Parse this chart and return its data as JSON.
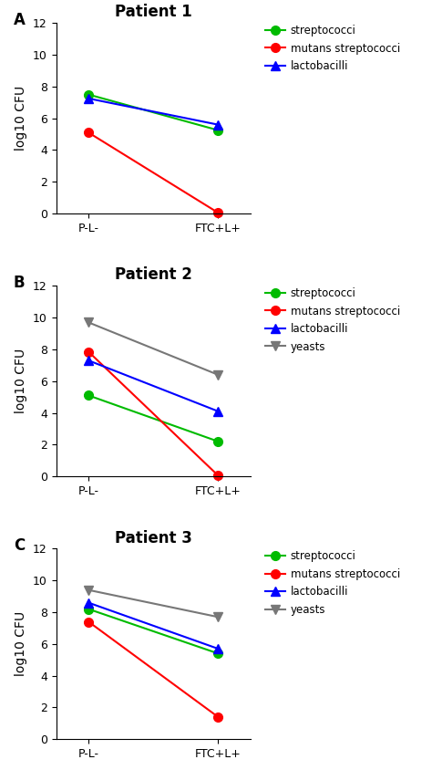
{
  "panels": [
    {
      "label": "A",
      "title": "Patient 1",
      "series": [
        {
          "name": "streptococci",
          "color": "#00bb00",
          "marker": "o",
          "x": [
            0,
            1
          ],
          "y": [
            7.5,
            5.25
          ]
        },
        {
          "name": "mutans streptococci",
          "color": "#ff0000",
          "marker": "o",
          "x": [
            0,
            1
          ],
          "y": [
            5.1,
            0.05
          ]
        },
        {
          "name": "lactobacilli",
          "color": "#0000ff",
          "marker": "^",
          "x": [
            0,
            1
          ],
          "y": [
            7.25,
            5.6
          ]
        }
      ],
      "legend_entries": [
        "streptococci",
        "mutans streptococci",
        "lactobacilli"
      ],
      "legend_colors": [
        "#00bb00",
        "#ff0000",
        "#0000ff"
      ],
      "legend_markers": [
        "o",
        "o",
        "^"
      ]
    },
    {
      "label": "B",
      "title": "Patient 2",
      "series": [
        {
          "name": "streptococci",
          "color": "#00bb00",
          "marker": "o",
          "x": [
            0,
            1
          ],
          "y": [
            5.1,
            2.2
          ]
        },
        {
          "name": "mutans streptococci",
          "color": "#ff0000",
          "marker": "o",
          "x": [
            0,
            1
          ],
          "y": [
            7.85,
            0.05
          ]
        },
        {
          "name": "lactobacilli",
          "color": "#0000ff",
          "marker": "^",
          "x": [
            0,
            1
          ],
          "y": [
            7.3,
            4.1
          ]
        },
        {
          "name": "yeasts",
          "color": "#777777",
          "marker": "v",
          "x": [
            0,
            1
          ],
          "y": [
            9.7,
            6.4
          ]
        }
      ],
      "legend_entries": [
        "streptococci",
        "mutans streptococci",
        "lactobacilli",
        "yeasts"
      ],
      "legend_colors": [
        "#00bb00",
        "#ff0000",
        "#0000ff",
        "#777777"
      ],
      "legend_markers": [
        "o",
        "o",
        "^",
        "v"
      ]
    },
    {
      "label": "C",
      "title": "Patient 3",
      "series": [
        {
          "name": "streptococci",
          "color": "#00bb00",
          "marker": "o",
          "x": [
            0,
            1
          ],
          "y": [
            8.2,
            5.4
          ]
        },
        {
          "name": "mutans streptococci",
          "color": "#ff0000",
          "marker": "o",
          "x": [
            0,
            1
          ],
          "y": [
            7.4,
            1.4
          ]
        },
        {
          "name": "lactobacilli",
          "color": "#0000ff",
          "marker": "^",
          "x": [
            0,
            1
          ],
          "y": [
            8.6,
            5.7
          ]
        },
        {
          "name": "yeasts",
          "color": "#777777",
          "marker": "v",
          "x": [
            0,
            1
          ],
          "y": [
            9.4,
            7.7
          ]
        }
      ],
      "legend_entries": [
        "streptococci",
        "mutans streptococci",
        "lactobacilli",
        "yeasts"
      ],
      "legend_colors": [
        "#00bb00",
        "#ff0000",
        "#0000ff",
        "#777777"
      ],
      "legend_markers": [
        "o",
        "o",
        "^",
        "v"
      ]
    }
  ],
  "xticklabels": [
    "P-L-",
    "FTC+L+"
  ],
  "ylabel": "log10 CFU",
  "ylim": [
    0,
    12
  ],
  "yticks": [
    0,
    2,
    4,
    6,
    8,
    10,
    12
  ],
  "background_color": "#ffffff",
  "title_fontsize": 12,
  "label_fontsize": 10,
  "tick_fontsize": 9,
  "legend_fontsize": 8.5,
  "marker_size": 7,
  "linewidth": 1.5
}
